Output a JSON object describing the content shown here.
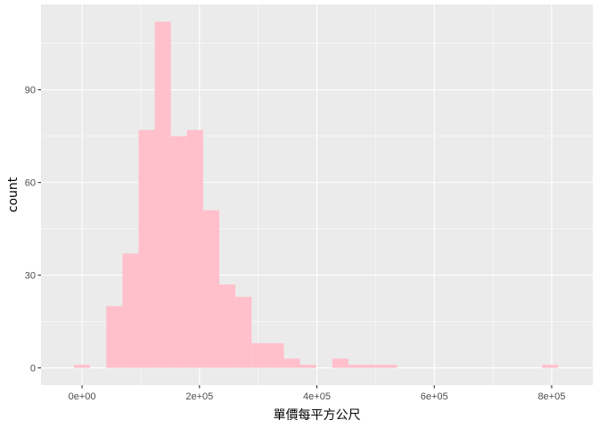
{
  "chart_data": {
    "type": "bar",
    "subtype": "histogram",
    "xlabel": "單價每平方公尺",
    "ylabel": "count",
    "xlim": [
      -70000,
      870000
    ],
    "ylim": [
      -5.6,
      117.6
    ],
    "x_ticks": [
      0,
      200000,
      400000,
      600000,
      800000
    ],
    "x_tick_labels": [
      "0e+00",
      "2e+05",
      "4e+05",
      "6e+05",
      "8e+05"
    ],
    "y_ticks": [
      0,
      30,
      60,
      90
    ],
    "y_tick_labels": [
      "0",
      "30",
      "60",
      "90"
    ],
    "bin_width": 27500,
    "bins": [
      {
        "x_start": -13750,
        "x_end": 13750,
        "count": 1
      },
      {
        "x_start": 41250,
        "x_end": 68750,
        "count": 20
      },
      {
        "x_start": 68750,
        "x_end": 96250,
        "count": 37
      },
      {
        "x_start": 96250,
        "x_end": 123750,
        "count": 77
      },
      {
        "x_start": 123750,
        "x_end": 151250,
        "count": 112
      },
      {
        "x_start": 151250,
        "x_end": 178750,
        "count": 75
      },
      {
        "x_start": 178750,
        "x_end": 206250,
        "count": 77
      },
      {
        "x_start": 206250,
        "x_end": 233750,
        "count": 51
      },
      {
        "x_start": 233750,
        "x_end": 261250,
        "count": 27
      },
      {
        "x_start": 261250,
        "x_end": 288750,
        "count": 23
      },
      {
        "x_start": 288750,
        "x_end": 316250,
        "count": 8
      },
      {
        "x_start": 316250,
        "x_end": 343750,
        "count": 8
      },
      {
        "x_start": 343750,
        "x_end": 371250,
        "count": 3
      },
      {
        "x_start": 371250,
        "x_end": 398750,
        "count": 1
      },
      {
        "x_start": 426250,
        "x_end": 453750,
        "count": 3
      },
      {
        "x_start": 453750,
        "x_end": 481250,
        "count": 1
      },
      {
        "x_start": 481250,
        "x_end": 508750,
        "count": 1
      },
      {
        "x_start": 508750,
        "x_end": 536250,
        "count": 1
      },
      {
        "x_start": 591250,
        "x_end": 618750,
        "count": 0
      },
      {
        "x_start": 783750,
        "x_end": 811250,
        "count": 1
      }
    ],
    "grid": true,
    "legend": "none",
    "colors": {
      "bar_fill": "#ffc0cb",
      "panel_background": "#ebebeb",
      "grid_major": "#ffffff",
      "tick_label": "#4d4d4d",
      "axis_title": "#000000"
    }
  }
}
